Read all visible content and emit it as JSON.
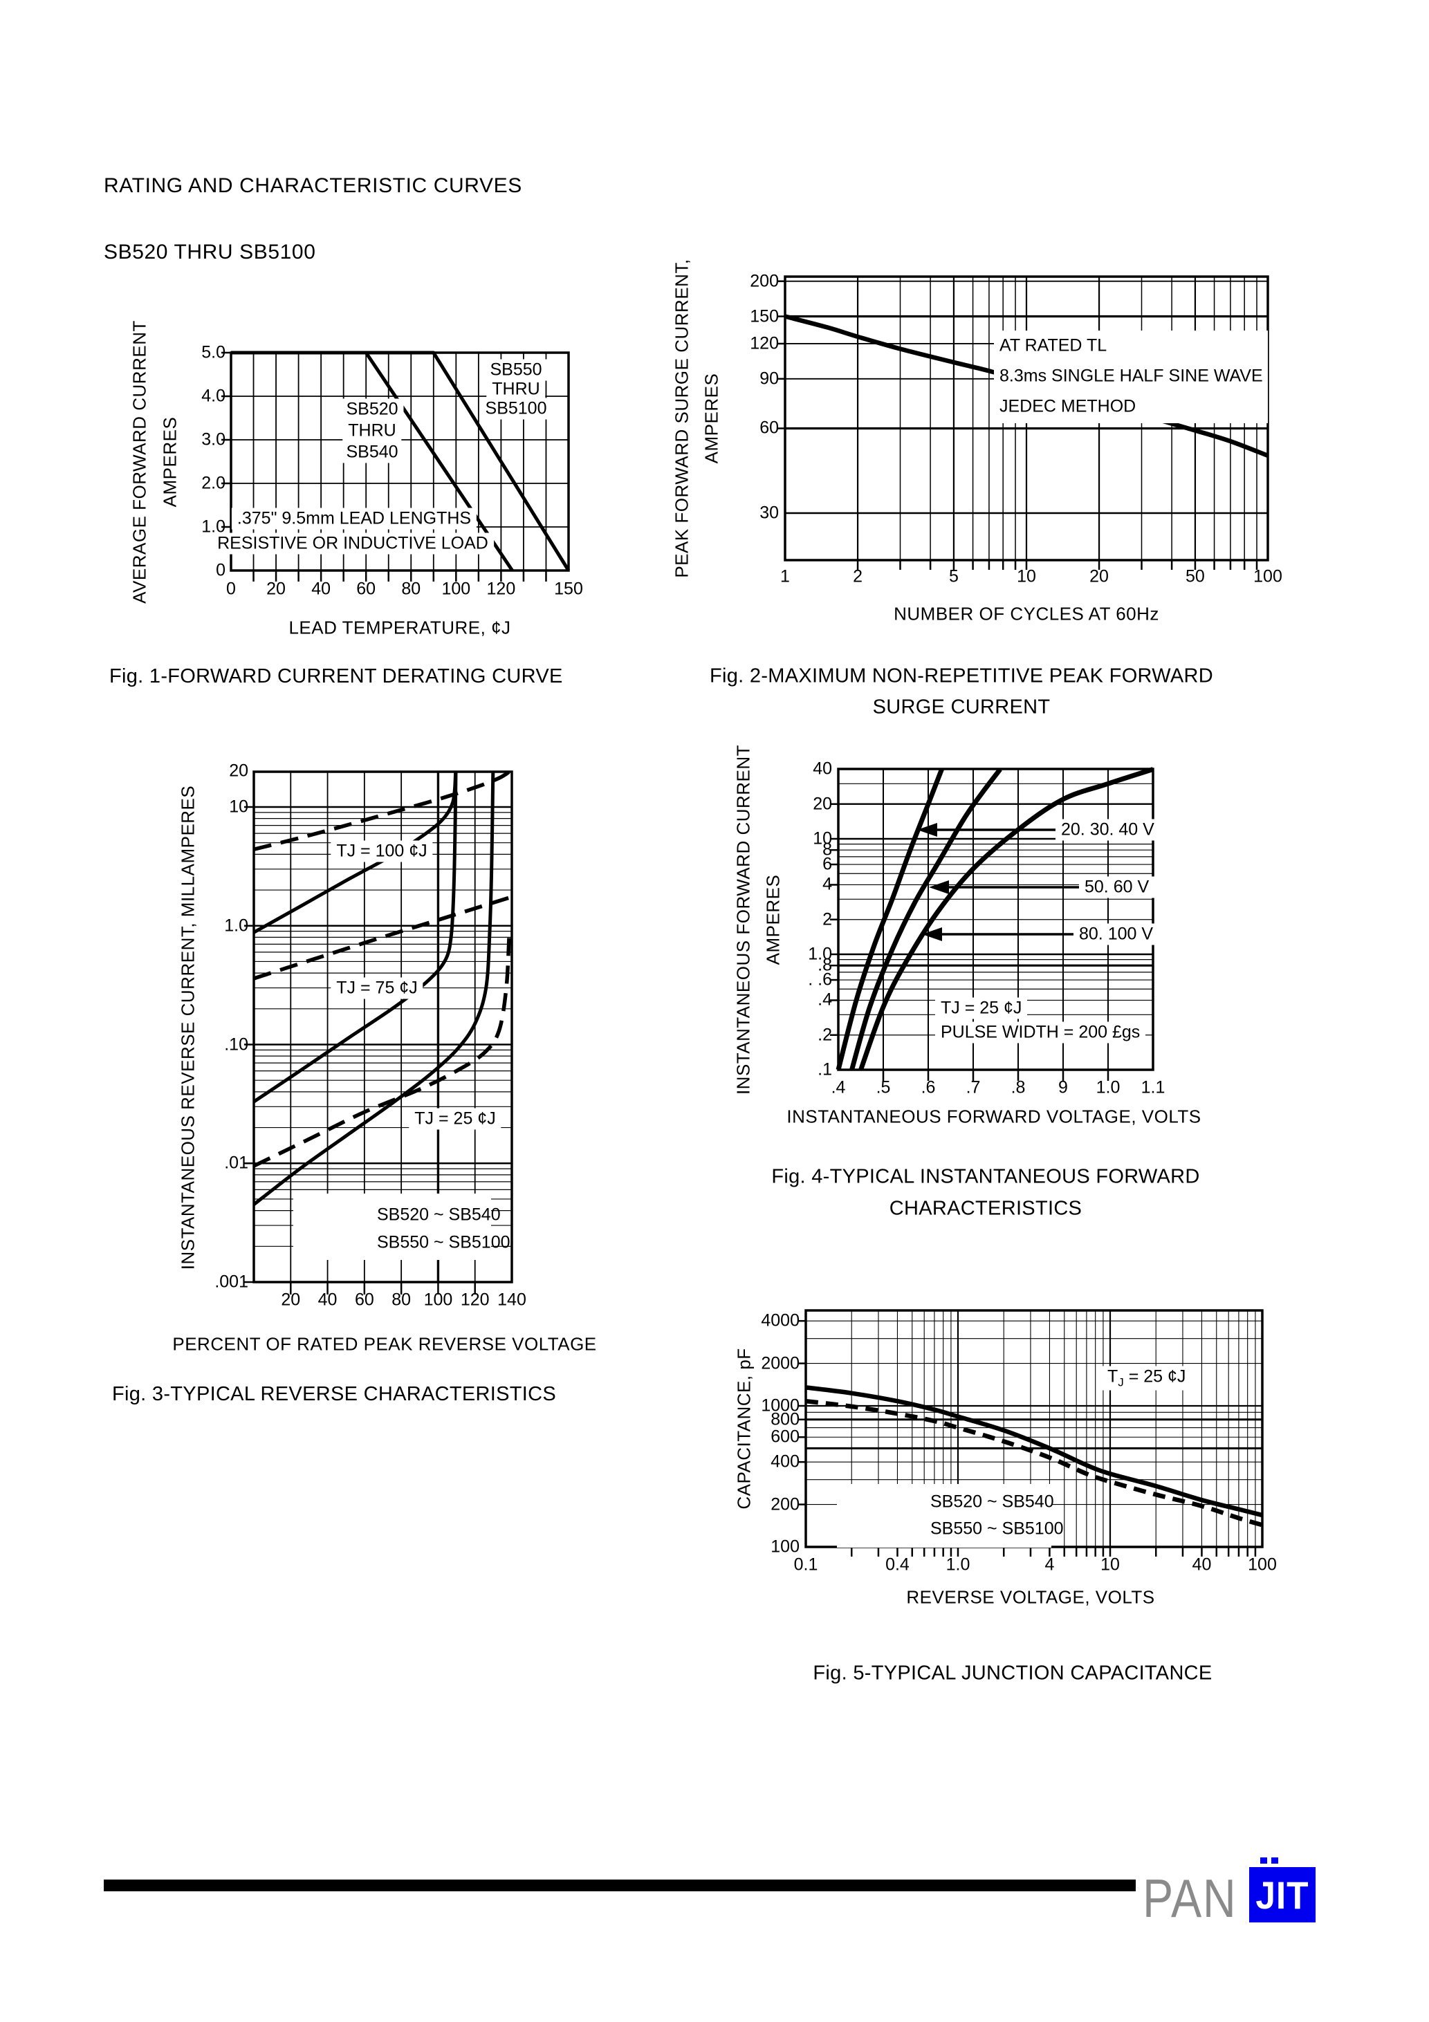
{
  "header": {
    "title": "RATING AND CHARACTERISTIC CURVES",
    "subtitle": "SB520 THRU SB5100"
  },
  "fig1": {
    "caption": "Fig. 1-FORWARD CURRENT DERATING CURVE",
    "y_axis_label_1": "AVERAGE FORWARD CURRENT",
    "y_axis_label_2": "AMPERES",
    "x_axis_label": "LEAD TEMPERATURE,  ¢J",
    "y_ticks": [
      "5.0",
      "4.0",
      "3.0",
      "2.0",
      "1.0",
      "0"
    ],
    "x_ticks": [
      "0",
      "20",
      "40",
      "60",
      "80",
      "100",
      "120",
      "150"
    ],
    "series1_label": [
      "SB520",
      "THRU",
      "SB540"
    ],
    "series2_label": [
      "SB550",
      "THRU",
      "SB5100"
    ],
    "note1": ".375\" 9.5mm LEAD LENGTHS",
    "note2": "RESISTIVE OR INDUCTIVE LOAD"
  },
  "fig2": {
    "caption_1": "Fig. 2-MAXIMUM NON-REPETITIVE PEAK FORWARD",
    "caption_2": "SURGE CURRENT",
    "y_axis_label_1": "PEAK FORWARD SURGE CURRENT,",
    "y_axis_label_2": "AMPERES",
    "x_axis_label": "NUMBER OF CYCLES AT 60Hz",
    "y_ticks": [
      "200",
      "150",
      "120",
      "90",
      "60",
      "30"
    ],
    "x_ticks": [
      "1",
      "2",
      "5",
      "10",
      "20",
      "50",
      "100"
    ],
    "note_1": "AT RATED TL",
    "note_2": "8.3ms SINGLE HALF SINE WAVE",
    "note_3": "JEDEC METHOD"
  },
  "fig3": {
    "caption": "Fig. 3-TYPICAL REVERSE CHARACTERISTICS",
    "y_axis_label": "INSTANTANEOUS REVERSE CURRENT, MILLAMPERES",
    "x_axis_label": "PERCENT OF RATED PEAK REVERSE VOLTAGE",
    "y_ticks": [
      "20",
      "10",
      "1.0",
      ".10",
      ".01",
      ".001"
    ],
    "x_ticks": [
      "20",
      "40",
      "60",
      "80",
      "100",
      "120",
      "140"
    ],
    "curve_label_100": "TJ = 100  ¢J",
    "curve_label_75": "TJ = 75   ¢J",
    "curve_label_25": "TJ = 25  ¢J",
    "legend": [
      {
        "label": "SB520 ~ SB540"
      },
      {
        "label": "SB550 ~ SB5100"
      }
    ]
  },
  "fig4": {
    "caption_1": "Fig. 4-TYPICAL INSTANTANEOUS FORWARD",
    "caption_2": "CHARACTERISTICS",
    "y_axis_label_1": "INSTANTANEOUS FORWARD CURRENT",
    "y_axis_label_2": "AMPERES",
    "x_axis_label": "INSTANTANEOUS FORWARD VOLTAGE, VOLTS",
    "y_ticks": [
      "40",
      "20",
      "10",
      "8",
      "6",
      "4",
      "2",
      "1.0",
      ".8",
      ". .6",
      ".4",
      ".2",
      ".1"
    ],
    "x_ticks": [
      ".4",
      ".5",
      ".6",
      ".7",
      ".8",
      "9",
      "1.0",
      "1.1"
    ],
    "ann_20_30_40": "20. 30. 40 V",
    "ann_50_60": "50. 60 V",
    "ann_80_100": "80. 100 V",
    "note_1": "TJ = 25  ¢J",
    "note_2": "PULSE WIDTH = 200 £gs"
  },
  "fig5": {
    "caption": "Fig. 5-TYPICAL JUNCTION CAPACITANCE",
    "y_axis_label": "CAPACITANCE, pF",
    "x_axis_label": "REVERSE VOLTAGE, VOLTS",
    "y_ticks": [
      "4000",
      "2000",
      "1000",
      "800",
      "600",
      "400",
      "200",
      "100"
    ],
    "x_ticks": [
      "0.1",
      "0.4",
      "1.0",
      "4",
      "10",
      "40",
      "100"
    ],
    "note_t": "T",
    "note_sub": "J",
    "note_rest": " = 25 ¢J",
    "legend": [
      {
        "label": "SB520 ~ SB540"
      },
      {
        "label": "SB550 ~ SB5100"
      }
    ]
  },
  "footer": {
    "logo_pan": "PAN",
    "logo_jit": "JIT"
  },
  "colors": {
    "ink": "#000000",
    "paper": "#ffffff",
    "logo_blue": "#0000ee",
    "logo_gray": "#8a8a8a"
  },
  "chart_data": [
    {
      "id": "fig1",
      "type": "line",
      "title": "Fig. 1-FORWARD CURRENT DERATING CURVE",
      "xlabel": "LEAD TEMPERATURE, ¢J",
      "ylabel": "AVERAGE FORWARD CURRENT AMPERES",
      "xscale": "linear",
      "yscale": "linear",
      "xlim": [
        0,
        150
      ],
      "ylim": [
        0,
        5
      ],
      "x_ticks": [
        0,
        20,
        40,
        60,
        80,
        100,
        120,
        150
      ],
      "y_ticks": [
        0,
        1.0,
        2.0,
        3.0,
        4.0,
        5.0
      ],
      "annotations": [
        ".375\" 9.5mm LEAD LENGTHS",
        "RESISTIVE OR INDUCTIVE LOAD"
      ],
      "grid": true,
      "legend_position": "on-chart",
      "series": [
        {
          "name": "SB520 THRU SB540",
          "points": [
            [
              0,
              5
            ],
            [
              60,
              5
            ],
            [
              125,
              0
            ]
          ]
        },
        {
          "name": "SB550 THRU SB5100",
          "points": [
            [
              0,
              5
            ],
            [
              90,
              5
            ],
            [
              150,
              0
            ]
          ]
        }
      ]
    },
    {
      "id": "fig2",
      "type": "line",
      "title": "Fig. 2-MAXIMUM NON-REPETITIVE PEAK FORWARD SURGE CURRENT",
      "xlabel": "NUMBER OF CYCLES AT 60Hz",
      "ylabel": "PEAK FORWARD SURGE CURRENT, AMPERES",
      "xscale": "log",
      "yscale": "log",
      "xlim": [
        1,
        100
      ],
      "ylim": [
        20,
        210
      ],
      "x_ticks": [
        1,
        2,
        5,
        10,
        20,
        50,
        100
      ],
      "y_ticks": [
        30,
        60,
        90,
        120,
        150,
        200
      ],
      "annotations": [
        "AT RATED TL",
        "8.3ms SINGLE HALF SINE WAVE",
        "JEDEC METHOD"
      ],
      "grid": true,
      "series": [
        {
          "name": "peak forward surge current",
          "points": [
            [
              1,
              150
            ],
            [
              1.5,
              137
            ],
            [
              2,
              127
            ],
            [
              3,
              115
            ],
            [
              5,
              103
            ],
            [
              7,
              96
            ],
            [
              10,
              88
            ],
            [
              15,
              80
            ],
            [
              20,
              74
            ],
            [
              30,
              67
            ],
            [
              50,
              59
            ],
            [
              70,
              54
            ],
            [
              100,
              48
            ]
          ]
        }
      ]
    },
    {
      "id": "fig3",
      "type": "line",
      "title": "Fig. 3-TYPICAL REVERSE CHARACTERISTICS",
      "xlabel": "PERCENT OF RATED PEAK REVERSE VOLTAGE",
      "ylabel": "INSTANTANEOUS REVERSE CURRENT, MILLAMPERES",
      "xscale": "linear",
      "yscale": "log",
      "xlim": [
        0,
        140
      ],
      "ylim": [
        0.001,
        20
      ],
      "x_ticks": [
        20,
        40,
        60,
        80,
        100,
        120,
        140
      ],
      "y_ticks": [
        0.001,
        0.01,
        0.1,
        1.0,
        10,
        20
      ],
      "annotations": [
        "TJ = 100 ¢J",
        "TJ = 75 ¢J",
        "TJ = 25 ¢J"
      ],
      "grid": true,
      "legend_position": "lower-center",
      "series": [
        {
          "name": "SB520 ~ SB540",
          "tj": "100",
          "style": "dashed",
          "points": [
            [
              0,
              4.4
            ],
            [
              25,
              5.5
            ],
            [
              50,
              7.0
            ],
            [
              75,
              9.0
            ],
            [
              100,
              11.6
            ],
            [
              120,
              14.6
            ],
            [
              133,
              17.5
            ],
            [
              139,
              20
            ]
          ]
        },
        {
          "name": "SB550 ~ SB5100",
          "tj": "100",
          "style": "solid",
          "points": [
            [
              0,
              0.88
            ],
            [
              25,
              1.45
            ],
            [
              50,
              2.4
            ],
            [
              75,
              3.9
            ],
            [
              90,
              5.5
            ],
            [
              100,
              7.2
            ],
            [
              105,
              8.8
            ],
            [
              108,
              11
            ],
            [
              109,
              14
            ],
            [
              109.5,
              20
            ]
          ]
        },
        {
          "name": "SB520 ~ SB540",
          "tj": "75",
          "style": "dashed",
          "points": [
            [
              0,
              0.36
            ],
            [
              25,
              0.48
            ],
            [
              50,
              0.64
            ],
            [
              75,
              0.85
            ],
            [
              100,
              1.12
            ],
            [
              120,
              1.4
            ],
            [
              140,
              1.75
            ]
          ]
        },
        {
          "name": "SB550 ~ SB5100",
          "tj": "75",
          "style": "solid",
          "points": [
            [
              0,
              0.033
            ],
            [
              25,
              0.06
            ],
            [
              50,
              0.11
            ],
            [
              75,
              0.2
            ],
            [
              90,
              0.3
            ],
            [
              100,
              0.42
            ],
            [
              105,
              0.56
            ],
            [
              107,
              0.8
            ],
            [
              108,
              1.3
            ],
            [
              108.8,
              3
            ],
            [
              109.3,
              8
            ],
            [
              109.6,
              20
            ]
          ]
        },
        {
          "name": "SB520 ~ SB540",
          "tj": "25",
          "style": "dashed",
          "points": [
            [
              0,
              0.0095
            ],
            [
              30,
              0.016
            ],
            [
              60,
              0.027
            ],
            [
              90,
              0.042
            ],
            [
              110,
              0.06
            ],
            [
              125,
              0.085
            ],
            [
              133,
              0.13
            ],
            [
              137,
              0.3
            ],
            [
              138.5,
              0.8
            ]
          ]
        },
        {
          "name": "SB550 ~ SB5100",
          "tj": "25",
          "style": "solid",
          "points": [
            [
              0,
              0.0045
            ],
            [
              25,
              0.009
            ],
            [
              50,
              0.017
            ],
            [
              75,
              0.032
            ],
            [
              95,
              0.055
            ],
            [
              110,
              0.09
            ],
            [
              120,
              0.15
            ],
            [
              126,
              0.3
            ],
            [
              128,
              0.9
            ],
            [
              129,
              3
            ],
            [
              129.8,
              20
            ]
          ]
        }
      ]
    },
    {
      "id": "fig4",
      "type": "line",
      "title": "Fig. 4-TYPICAL INSTANTANEOUS FORWARD CHARACTERISTICS",
      "xlabel": "INSTANTANEOUS FORWARD VOLTAGE, VOLTS",
      "ylabel": "INSTANTANEOUS FORWARD CURRENT AMPERES",
      "xscale": "linear",
      "yscale": "log",
      "xlim": [
        0.4,
        1.1
      ],
      "ylim": [
        0.1,
        40
      ],
      "x_ticks": [
        0.4,
        0.5,
        0.6,
        0.7,
        0.8,
        0.9,
        1.0,
        1.1
      ],
      "y_ticks": [
        0.1,
        0.2,
        0.4,
        0.6,
        0.8,
        1.0,
        2,
        4,
        6,
        8,
        10,
        20,
        40
      ],
      "annotations": [
        "20. 30. 40 V",
        "50. 60 V",
        "80. 100 V",
        "TJ = 25 ¢J",
        "PULSE WIDTH = 200 £gs"
      ],
      "grid": true,
      "series": [
        {
          "name": "20. 30. 40 V",
          "points": [
            [
              0.4,
              0.1
            ],
            [
              0.44,
              0.4
            ],
            [
              0.48,
              1.2
            ],
            [
              0.52,
              3.0
            ],
            [
              0.56,
              8.0
            ],
            [
              0.6,
              20
            ],
            [
              0.63,
              40
            ]
          ]
        },
        {
          "name": "50. 60 V",
          "points": [
            [
              0.43,
              0.1
            ],
            [
              0.47,
              0.35
            ],
            [
              0.52,
              1.1
            ],
            [
              0.57,
              2.8
            ],
            [
              0.62,
              6.0
            ],
            [
              0.68,
              15
            ],
            [
              0.72,
              25
            ],
            [
              0.76,
              40
            ]
          ]
        },
        {
          "name": "80. 100 V",
          "points": [
            [
              0.45,
              0.1
            ],
            [
              0.5,
              0.35
            ],
            [
              0.55,
              0.85
            ],
            [
              0.62,
              2.3
            ],
            [
              0.7,
              5.5
            ],
            [
              0.8,
              12
            ],
            [
              0.9,
              22
            ],
            [
              1.0,
              30
            ],
            [
              1.1,
              40
            ]
          ]
        }
      ]
    },
    {
      "id": "fig5",
      "type": "line",
      "title": "Fig. 5-TYPICAL JUNCTION CAPACITANCE",
      "xlabel": "REVERSE VOLTAGE, VOLTS",
      "ylabel": "CAPACITANCE, pF",
      "xscale": "log",
      "yscale": "log",
      "xlim": [
        0.1,
        100
      ],
      "ylim": [
        90,
        4700
      ],
      "x_ticks": [
        0.1,
        0.4,
        1.0,
        4,
        10,
        40,
        100
      ],
      "y_ticks": [
        100,
        200,
        400,
        600,
        800,
        1000,
        2000,
        4000
      ],
      "annotations": [
        "TJ = 25 ¢J"
      ],
      "grid": true,
      "legend_position": "lower-left",
      "series": [
        {
          "name": "SB520 ~ SB540",
          "style": "solid",
          "points": [
            [
              0.1,
              1350
            ],
            [
              0.2,
              1230
            ],
            [
              0.4,
              1080
            ],
            [
              0.7,
              940
            ],
            [
              1,
              840
            ],
            [
              2,
              670
            ],
            [
              4,
              500
            ],
            [
              7,
              380
            ],
            [
              10,
              330
            ],
            [
              20,
              270
            ],
            [
              40,
              215
            ],
            [
              70,
              185
            ],
            [
              100,
              168
            ]
          ]
        },
        {
          "name": "SB550 ~ SB5100",
          "style": "dashed",
          "points": [
            [
              0.1,
              1080
            ],
            [
              0.2,
              990
            ],
            [
              0.4,
              880
            ],
            [
              0.7,
              780
            ],
            [
              1,
              700
            ],
            [
              2,
              560
            ],
            [
              4,
              430
            ],
            [
              7,
              330
            ],
            [
              10,
              290
            ],
            [
              20,
              235
            ],
            [
              40,
              195
            ],
            [
              70,
              160
            ],
            [
              100,
              143
            ]
          ]
        }
      ]
    }
  ]
}
